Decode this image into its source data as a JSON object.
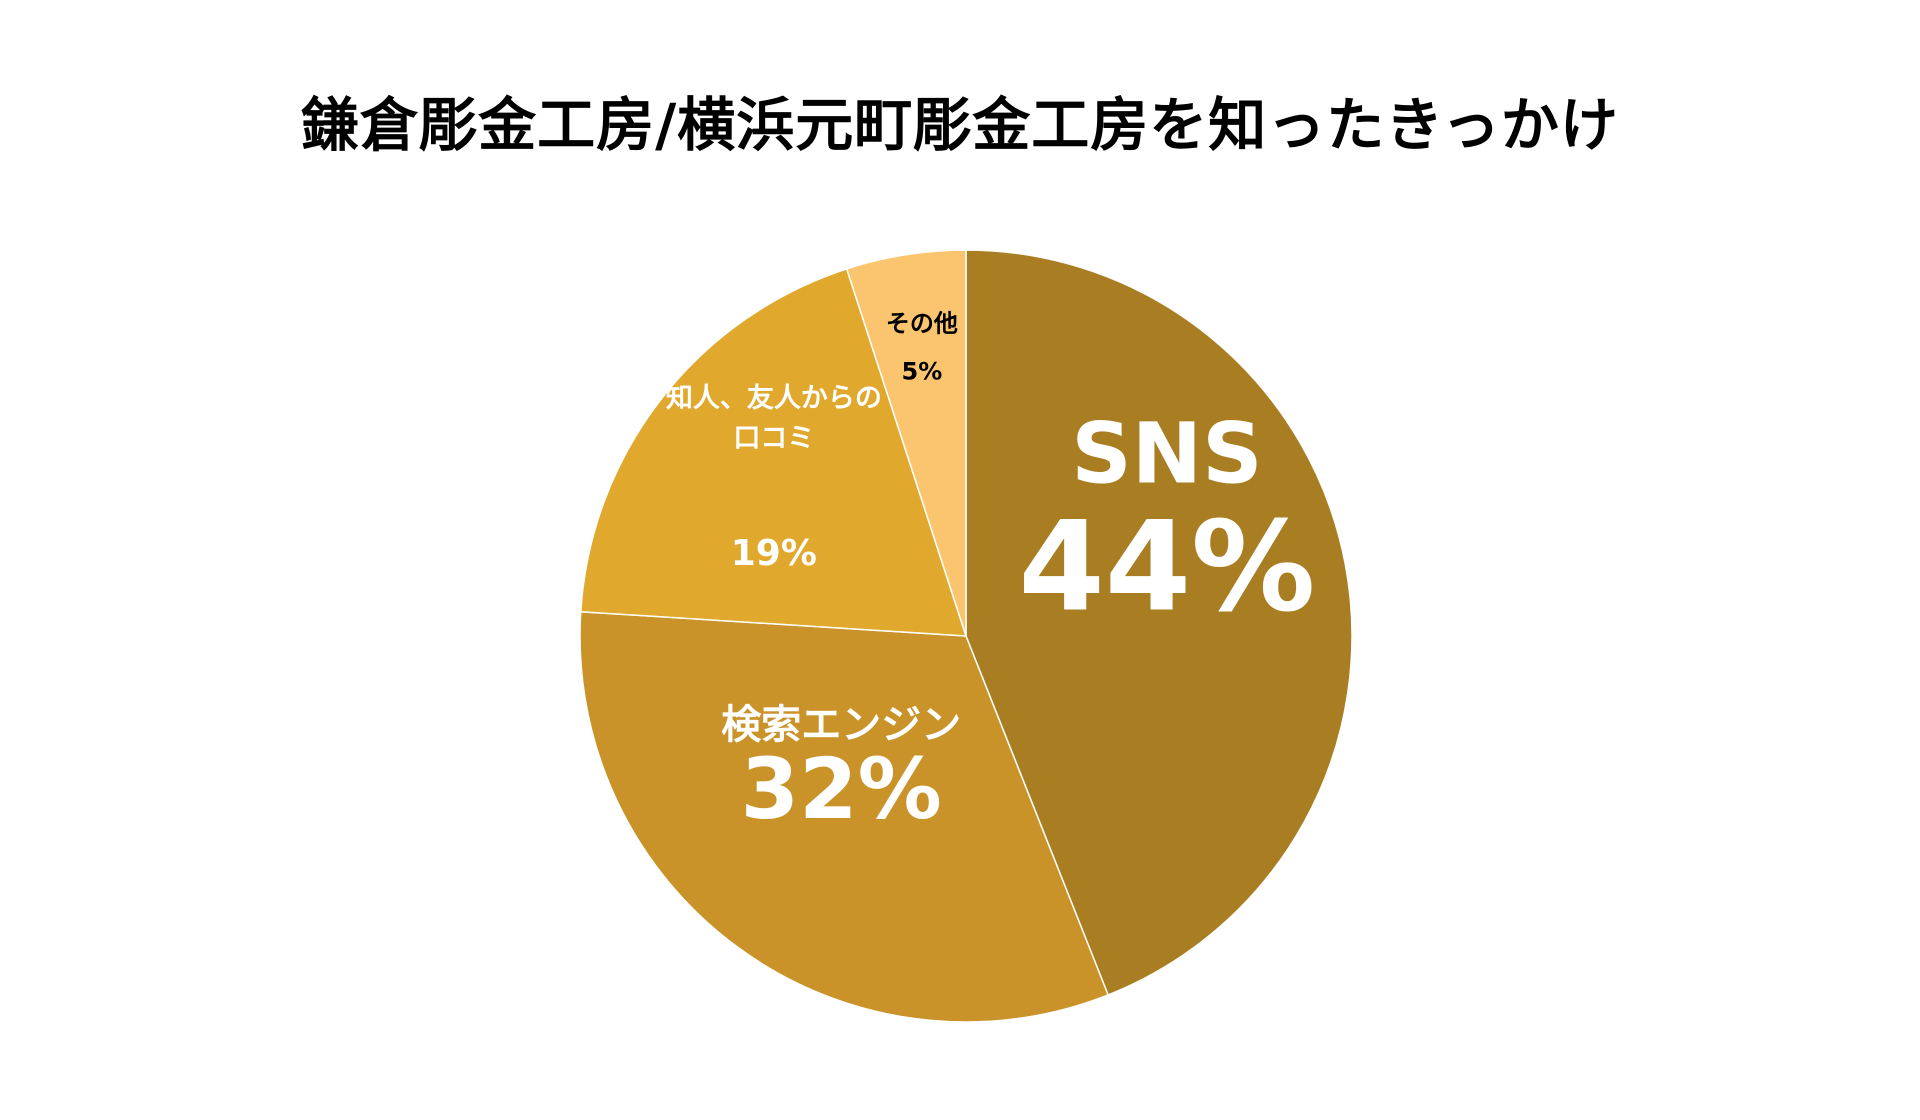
{
  "chart_data": {
    "type": "pie",
    "title": "鎌倉彫金工房/横浜元町彫金工房を知ったきっかけ",
    "slices": [
      {
        "name": "SNS",
        "percent_label": "44%",
        "value": 44,
        "color": "#A97D22",
        "label_color": "#FFFFFF"
      },
      {
        "name": "検索エンジン",
        "percent_label": "32%",
        "value": 32,
        "color": "#C9932A",
        "label_color": "#FFFFFF"
      },
      {
        "name": "知人、友人からの\n口コミ",
        "percent_label": "19%",
        "value": 19,
        "color": "#E1A82E",
        "label_color": "#FFFFFF"
      },
      {
        "name": "その他",
        "percent_label": "5%",
        "value": 5,
        "color": "#FBC56F",
        "label_color": "#000000"
      }
    ],
    "start_angle": "top",
    "direction": "clockwise",
    "legend": "none"
  }
}
